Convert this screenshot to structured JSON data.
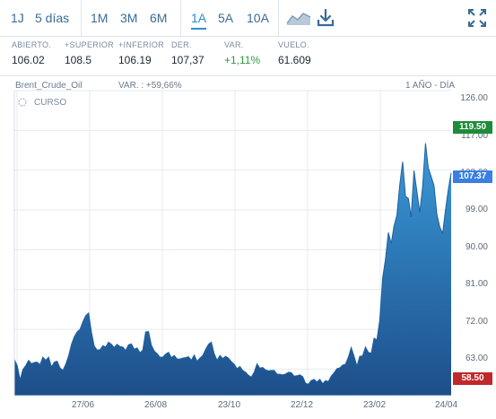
{
  "toolbar": {
    "ranges": [
      "1J",
      "5 días",
      "1M",
      "3M",
      "6M",
      "1A",
      "5A",
      "10A"
    ],
    "active_range": "1A",
    "chart_type_icon": "area-chart-icon",
    "download_icon": "download-icon",
    "fullscreen_icon": "fullscreen-icon"
  },
  "stats": [
    {
      "label": "ABIERTO.",
      "value": "106.02"
    },
    {
      "label": "+SUPERIOR",
      "value": "108.5"
    },
    {
      "label": "+INFERIOR",
      "value": "106.19"
    },
    {
      "label": "DER.",
      "value": "107,37"
    },
    {
      "label": "VAR.",
      "value": "+1,11%"
    },
    {
      "label": "VUELO.",
      "value": "61.609"
    }
  ],
  "chart_header": {
    "symbol": "Brent_Crude_Oil",
    "change": "VAR. : +59,66%",
    "period": "1 AÑO - DÍA",
    "legend": "CURSO"
  },
  "colors": {
    "accent": "#2a8fd6",
    "area_top": "#3a9ad9",
    "area_bottom": "#1d4e8a",
    "high_badge": "#1e8b3a",
    "last_badge": "#3b7fe0",
    "low_badge": "#c0282b"
  },
  "chart_data": {
    "type": "area",
    "title": "",
    "series_name": "Brent_Crude_Oil",
    "x_ticks": [
      "27/06",
      "26/08",
      "23/10",
      "22/12",
      "23/02",
      "24/04"
    ],
    "y_ticks": [
      "126.00",
      "117.00",
      "108.00",
      "99.00",
      "90.00",
      "81.00",
      "72.00",
      "63.00"
    ],
    "ylim": [
      57,
      126
    ],
    "highlight_labels": {
      "high": "119.50",
      "last": "107.37",
      "low": "58.50"
    },
    "values": [
      65.2,
      63.8,
      60.6,
      62.9,
      63.8,
      65.0,
      64.2,
      64.5,
      64.6,
      64.0,
      65.7,
      65.0,
      65.7,
      63.5,
      64.6,
      64.8,
      63.3,
      62.7,
      64.1,
      66.0,
      68.6,
      70.3,
      71.4,
      72.0,
      73.7,
      75.1,
      75.7,
      71.4,
      68.2,
      67.3,
      67.4,
      68.3,
      68.0,
      69.1,
      68.6,
      67.9,
      68.6,
      68.1,
      68.0,
      67.2,
      68.5,
      68.7,
      67.5,
      67.8,
      66.7,
      67.3,
      71.4,
      71.5,
      68.4,
      67.1,
      66.5,
      65.7,
      65.7,
      66.4,
      66.8,
      65.6,
      66.1,
      65.3,
      65.3,
      65.5,
      65.6,
      65.8,
      65.0,
      66.2,
      64.8,
      65.5,
      66.1,
      67.5,
      68.6,
      69.1,
      66.5,
      65.0,
      66.1,
      65.4,
      65.9,
      65.5,
      64.7,
      64.1,
      63.1,
      63.6,
      62.7,
      62.3,
      61.6,
      61.2,
      62.3,
      64.2,
      63.2,
      63.4,
      62.8,
      62.6,
      62.7,
      62.7,
      61.9,
      61.8,
      61.7,
      61.9,
      62.3,
      62.2,
      61.4,
      61.5,
      61.7,
      61.3,
      59.8,
      59.6,
      60.4,
      60.7,
      60.1,
      60.7,
      59.7,
      60.4,
      60.2,
      61.4,
      62.2,
      63.1,
      63.3,
      63.9,
      64.1,
      65.7,
      67.9,
      65.9,
      63.7,
      65.9,
      66.0,
      68.0,
      66.8,
      66.6,
      70.0,
      69.6,
      74.1,
      83.6,
      87.9,
      93.9,
      91.4,
      95.4,
      97.8,
      104.7,
      109.9,
      102.1,
      101.6,
      97.4,
      107.9,
      103.2,
      98.5,
      104.3,
      114.1,
      108.5,
      106.6,
      104.5,
      98.0,
      95.2,
      93.7,
      98.9,
      103.6,
      107.4
    ]
  }
}
